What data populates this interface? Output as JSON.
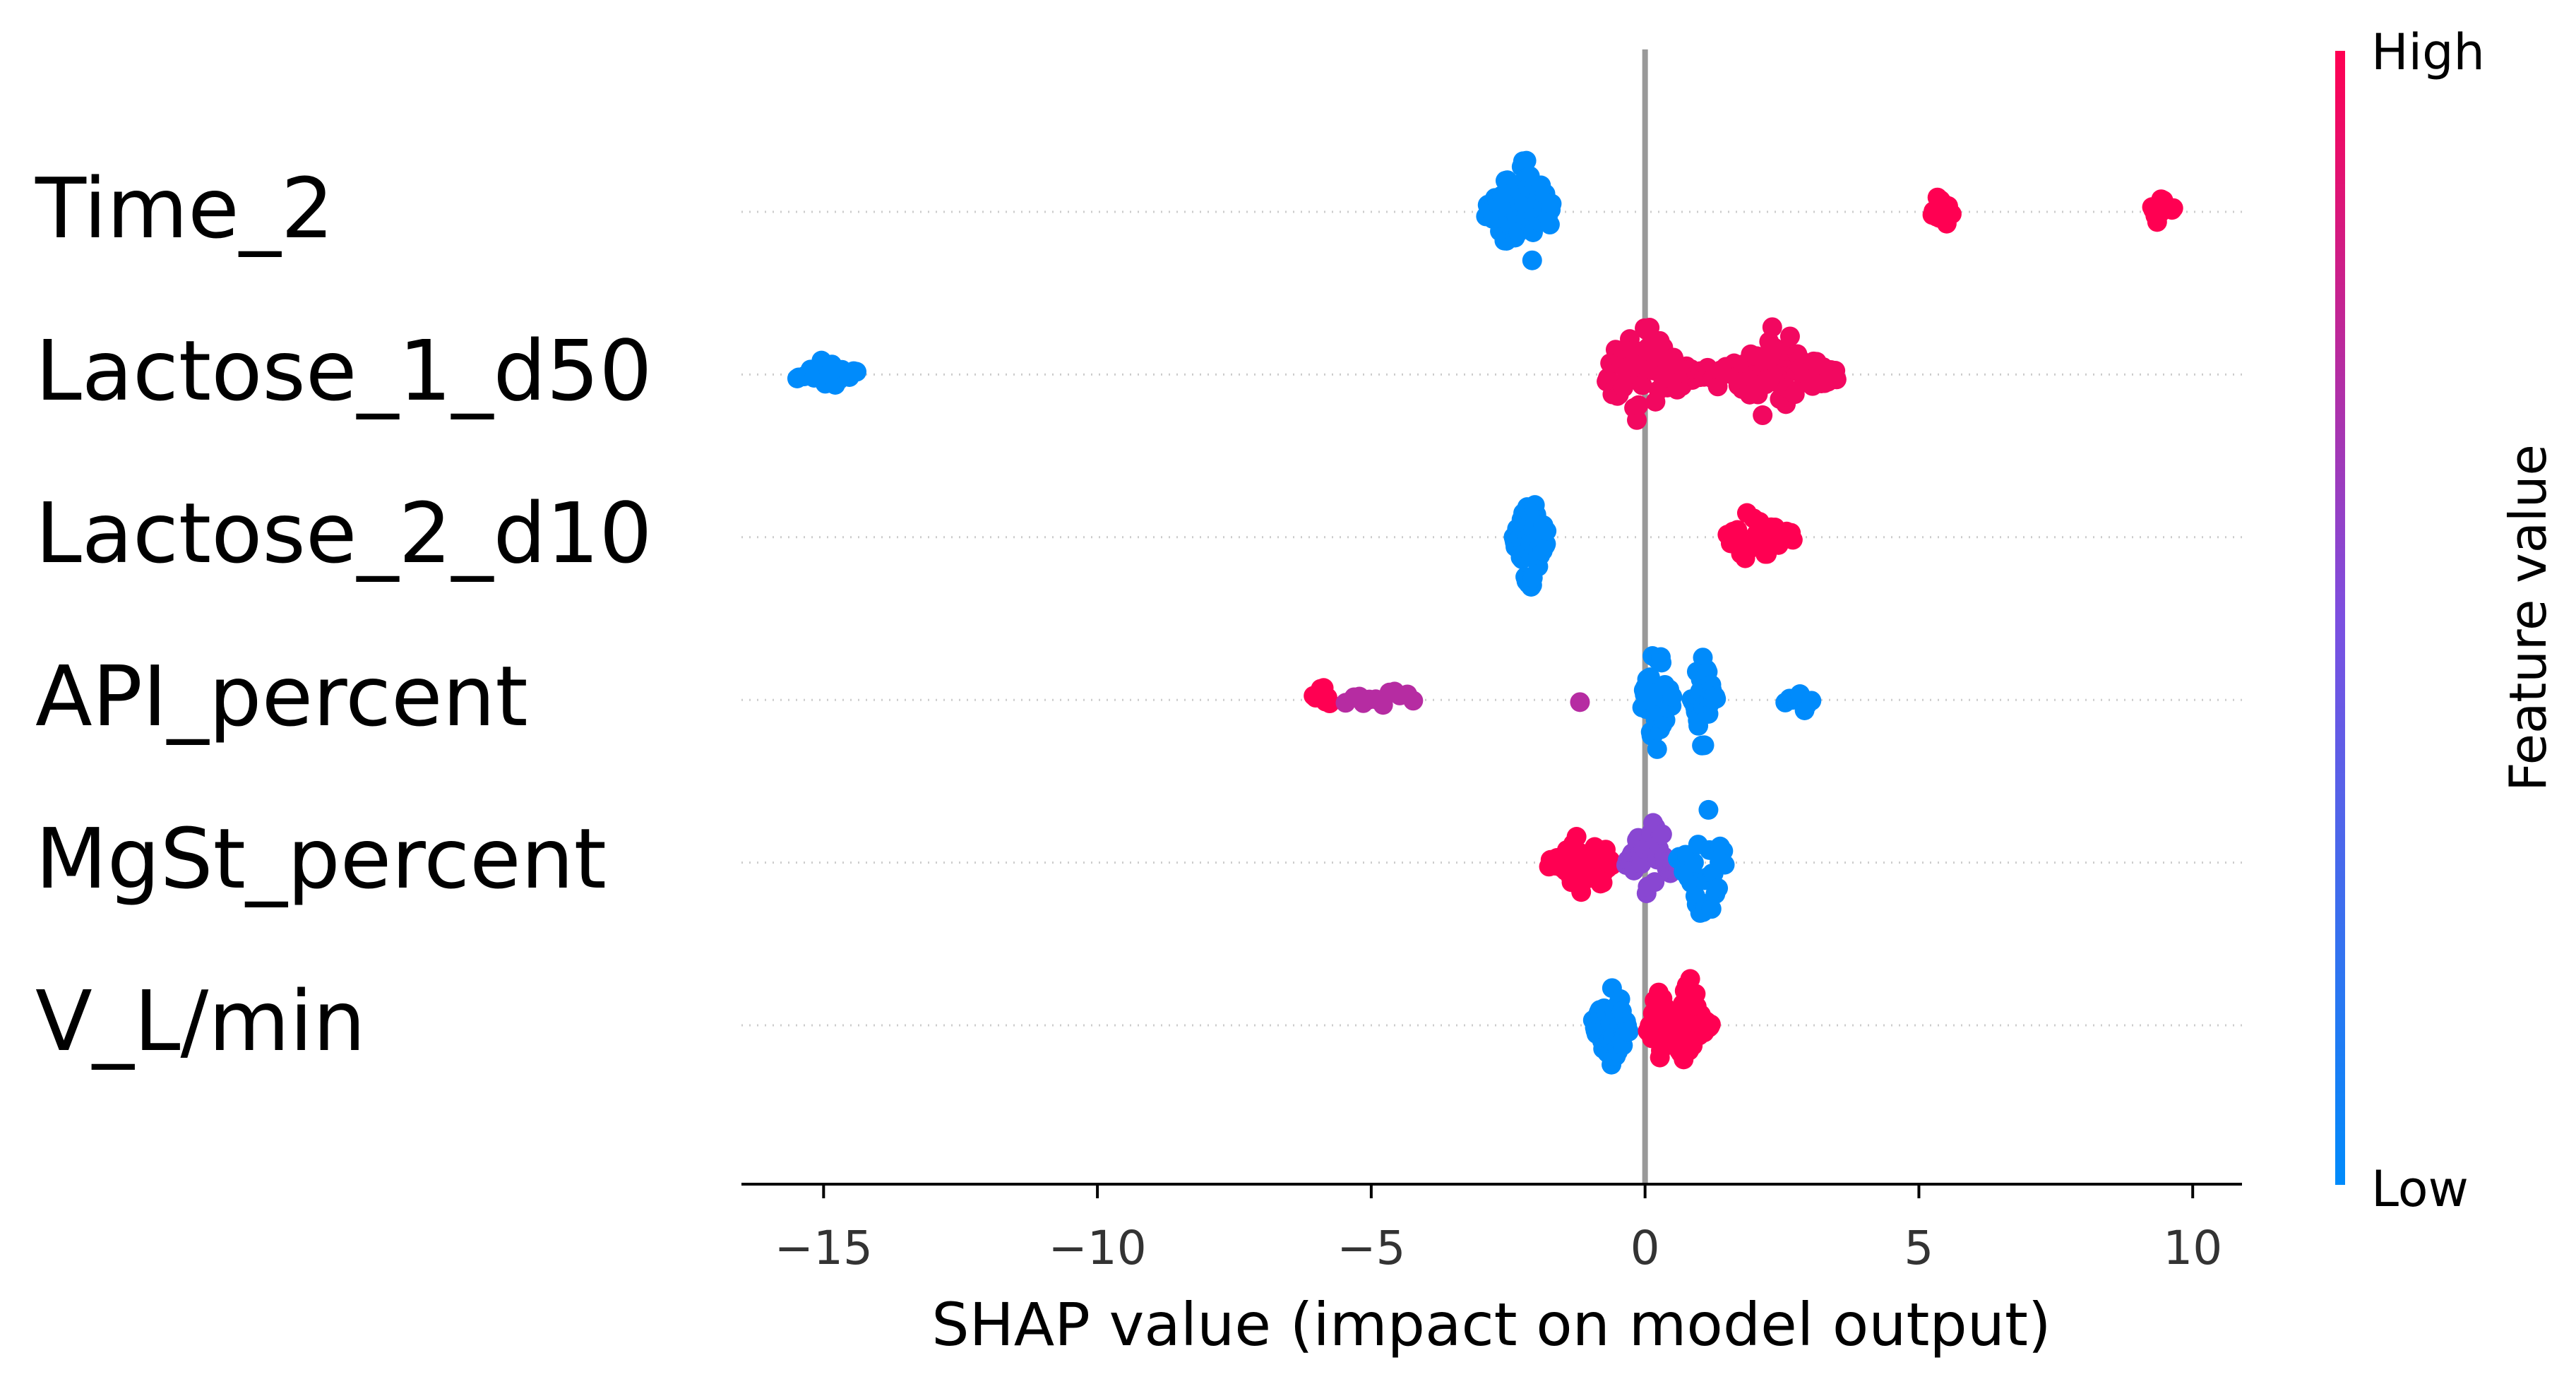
{
  "colors": {
    "low": "#008bfb",
    "mid": "#7c4fe0",
    "high": "#ff0052",
    "zero_line": "#999999",
    "grid": "#cccccc"
  },
  "chart_data": {
    "type": "scatter",
    "subtype": "shap-beeswarm",
    "xlabel": "SHAP value (impact on model output)",
    "xlim": [
      -16.5,
      10.9
    ],
    "xticks": [
      -15,
      -10,
      -5,
      0,
      5,
      10
    ],
    "xtick_labels": [
      "−15",
      "−10",
      "−5",
      "0",
      "5",
      "10"
    ],
    "colorbar": {
      "title": "Feature value",
      "high_label": "High",
      "low_label": "Low"
    },
    "features": [
      {
        "name": "Time_2",
        "clusters": [
          {
            "x_min": -2.9,
            "x_max": -1.7,
            "center": -2.25,
            "peak": 0.8,
            "n": 60,
            "value": 0.0
          },
          {
            "x_min": 5.25,
            "x_max": 5.6,
            "center": 5.42,
            "peak": 0.25,
            "n": 16,
            "value": 1.0
          },
          {
            "x_min": 9.25,
            "x_max": 9.65,
            "center": 9.45,
            "peak": 0.18,
            "n": 12,
            "value": 1.0
          }
        ]
      },
      {
        "name": "Lactose_1_d50",
        "clusters": [
          {
            "x_min": -15.5,
            "x_max": -14.4,
            "center": -14.95,
            "peak": 0.16,
            "n": 18,
            "value": 0.0
          },
          {
            "x_min": -0.7,
            "x_max": 1.0,
            "center": -0.05,
            "peak": 0.65,
            "n": 62,
            "value": 0.95
          },
          {
            "x_min": 1.0,
            "x_max": 1.7,
            "center": 1.3,
            "peak": 0.12,
            "n": 10,
            "value": 0.95
          },
          {
            "x_min": 1.6,
            "x_max": 3.5,
            "center": 2.4,
            "peak": 0.65,
            "n": 70,
            "value": 0.95
          }
        ]
      },
      {
        "name": "Lactose_2_d10",
        "clusters": [
          {
            "x_min": -2.4,
            "x_max": -1.8,
            "center": -2.1,
            "peak": 0.75,
            "n": 52,
            "value": 0.0
          },
          {
            "x_min": 1.5,
            "x_max": 2.7,
            "center": 2.0,
            "peak": 0.32,
            "n": 34,
            "value": 1.0
          }
        ]
      },
      {
        "name": "API_percent",
        "clusters": [
          {
            "x_min": -6.05,
            "x_max": -5.75,
            "center": -5.9,
            "peak": 0.18,
            "n": 8,
            "value": 1.0
          },
          {
            "x_min": -5.45,
            "x_max": -4.25,
            "center": -4.8,
            "peak": 0.1,
            "n": 12,
            "value": 0.72
          },
          {
            "x_min": -1.25,
            "x_max": -1.15,
            "center": -1.2,
            "peak": 0.0,
            "n": 1,
            "value": 0.72
          },
          {
            "x_min": -0.05,
            "x_max": 0.5,
            "center": 0.2,
            "peak": 0.7,
            "n": 40,
            "value": 0.0
          },
          {
            "x_min": 0.85,
            "x_max": 1.3,
            "center": 1.05,
            "peak": 0.6,
            "n": 30,
            "value": 0.0
          },
          {
            "x_min": 2.55,
            "x_max": 3.05,
            "center": 2.85,
            "peak": 0.12,
            "n": 8,
            "value": 0.0
          }
        ]
      },
      {
        "name": "MgSt_percent",
        "clusters": [
          {
            "x_min": -1.75,
            "x_max": -0.6,
            "center": -1.05,
            "peak": 0.42,
            "n": 40,
            "value": 1.0
          },
          {
            "x_min": -0.35,
            "x_max": 0.6,
            "center": 0.1,
            "peak": 0.55,
            "n": 34,
            "value": 0.55
          },
          {
            "x_min": 0.6,
            "x_max": 1.45,
            "center": 1.1,
            "peak": 0.75,
            "n": 36,
            "value": 0.0
          }
        ]
      },
      {
        "name": "V_L/min",
        "clusters": [
          {
            "x_min": -0.95,
            "x_max": -0.3,
            "center": -0.6,
            "peak": 0.55,
            "n": 44,
            "value": 0.0
          },
          {
            "x_min": 0.05,
            "x_max": 0.5,
            "center": 0.25,
            "peak": 0.45,
            "n": 26,
            "value": 1.0
          },
          {
            "x_min": 0.55,
            "x_max": 1.2,
            "center": 0.8,
            "peak": 0.6,
            "n": 34,
            "value": 1.0
          }
        ]
      }
    ]
  }
}
